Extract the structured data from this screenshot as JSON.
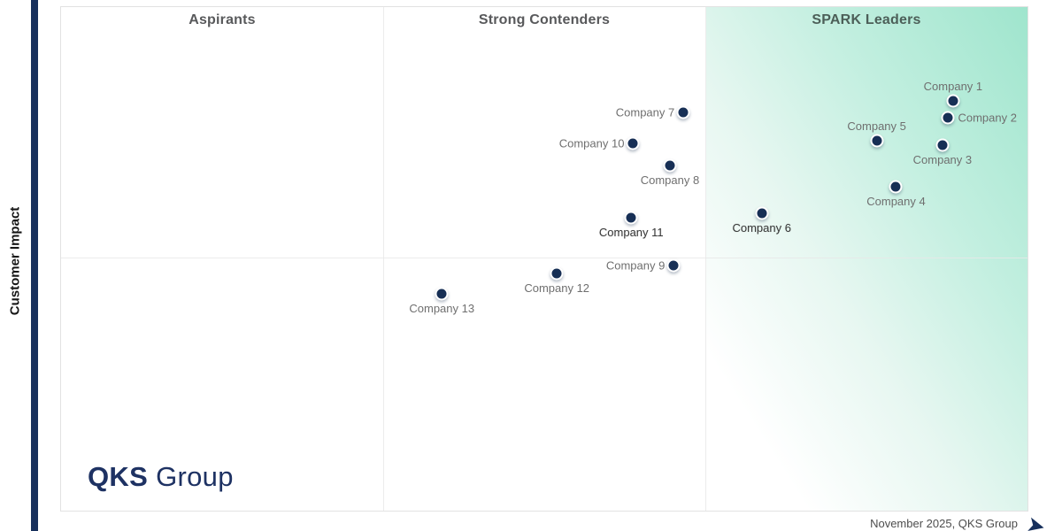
{
  "axes": {
    "y_label": "Customer Impact"
  },
  "footer": {
    "note": "November 2025, QKS Group"
  },
  "logo": {
    "bold": "QKS",
    "regular": "Group"
  },
  "icons": {
    "x_axis_arrow": "➤"
  },
  "colors": {
    "brand_navy": "#17305c",
    "leader_green": "#9fe5cd",
    "quadrant_title_gray": "#58595b",
    "leader_title_green_gray": "#4c5f58",
    "label_gray": "#6f6f6f",
    "grid_gray": "#ececec"
  },
  "chart_data": {
    "type": "scatter",
    "title": "",
    "ylabel": "Customer Impact",
    "xlabel": "",
    "legend": "none",
    "grid": "quadrant (two vertical thirds dividers, one horizontal midline)",
    "quadrant_titles": [
      "Aspirants",
      "Strong Contenders",
      "SPARK Leaders"
    ],
    "x_range_pct": [
      0,
      100
    ],
    "y_range_pct": [
      0,
      100
    ],
    "points": [
      {
        "name": "Company 1",
        "x_pct": 92.3,
        "y_pct": 81.4,
        "quadrant": "SPARK Leaders",
        "label_side": "above",
        "emphasis": false
      },
      {
        "name": "Company 2",
        "x_pct": 91.8,
        "y_pct": 78.1,
        "quadrant": "SPARK Leaders",
        "label_side": "right",
        "emphasis": false
      },
      {
        "name": "Company 3",
        "x_pct": 91.2,
        "y_pct": 72.5,
        "quadrant": "SPARK Leaders",
        "label_side": "below",
        "emphasis": false
      },
      {
        "name": "Company 4",
        "x_pct": 86.4,
        "y_pct": 64.4,
        "quadrant": "SPARK Leaders",
        "label_side": "below",
        "emphasis": false
      },
      {
        "name": "Company 5",
        "x_pct": 84.4,
        "y_pct": 73.4,
        "quadrant": "SPARK Leaders",
        "label_side": "above",
        "emphasis": false
      },
      {
        "name": "Company 6",
        "x_pct": 72.5,
        "y_pct": 59.0,
        "quadrant": "SPARK Leaders",
        "label_side": "below",
        "emphasis": true
      },
      {
        "name": "Company 7",
        "x_pct": 64.4,
        "y_pct": 79.0,
        "quadrant": "Strong Contenders",
        "label_side": "left",
        "emphasis": false
      },
      {
        "name": "Company 8",
        "x_pct": 63.0,
        "y_pct": 68.5,
        "quadrant": "Strong Contenders",
        "label_side": "below",
        "emphasis": false
      },
      {
        "name": "Company 9",
        "x_pct": 63.4,
        "y_pct": 48.6,
        "quadrant": "Strong Contenders",
        "label_side": "left",
        "emphasis": false
      },
      {
        "name": "Company 10",
        "x_pct": 59.2,
        "y_pct": 73.0,
        "quadrant": "Strong Contenders",
        "label_side": "left",
        "emphasis": false
      },
      {
        "name": "Company 11",
        "x_pct": 59.0,
        "y_pct": 58.1,
        "quadrant": "Strong Contenders",
        "label_side": "below",
        "emphasis": true
      },
      {
        "name": "Company 12",
        "x_pct": 51.3,
        "y_pct": 47.1,
        "quadrant": "Strong Contenders",
        "label_side": "below",
        "emphasis": false
      },
      {
        "name": "Company 13",
        "x_pct": 39.4,
        "y_pct": 43.1,
        "quadrant": "Strong Contenders",
        "label_side": "below",
        "emphasis": false
      }
    ]
  }
}
